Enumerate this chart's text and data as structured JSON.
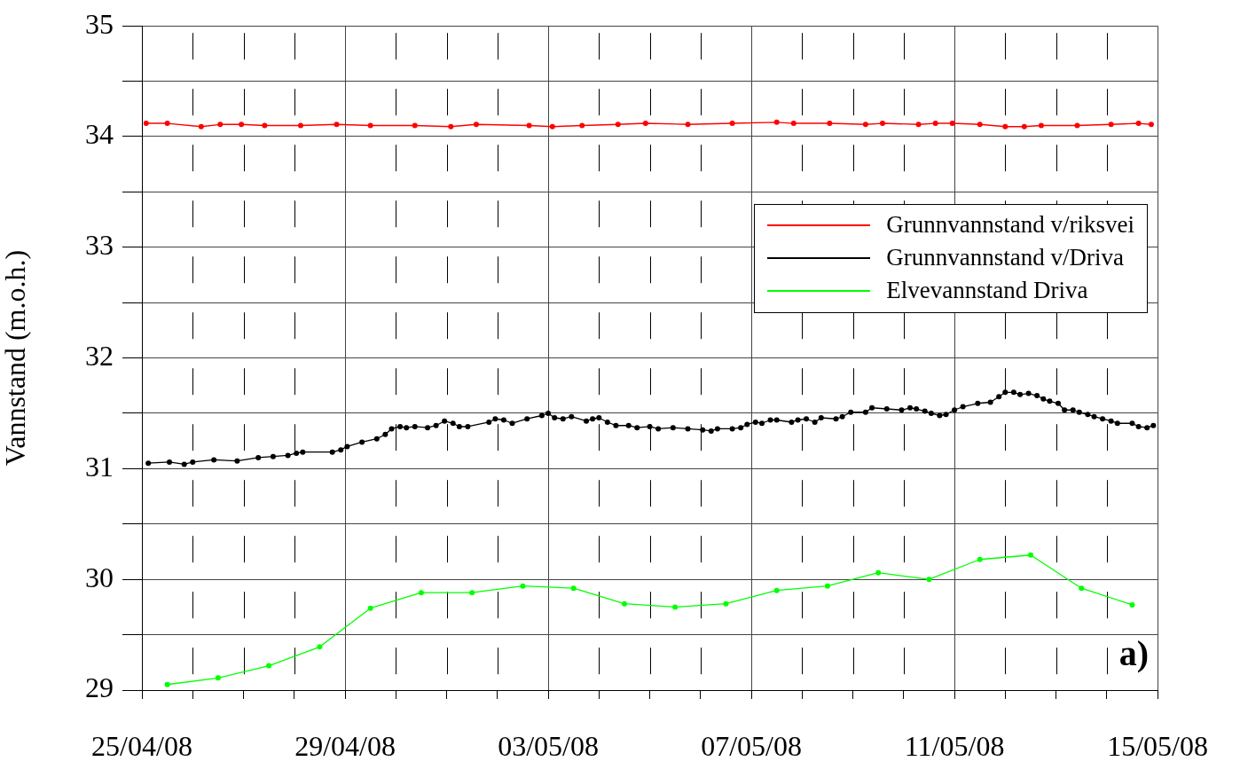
{
  "chart_data": {
    "type": "line",
    "ylabel": "Vannstand (m.o.h.)",
    "annotations": [
      "a)"
    ],
    "legend": "top right",
    "grid": true,
    "marker": "circle",
    "line_style": "solid",
    "xlim": [
      "--04-25",
      "--05-15"
    ],
    "xticks": [
      {
        "value": "--04-25",
        "label": "25/04/08"
      },
      {
        "value": "--04-26",
        "label": null
      },
      {
        "value": "--04-27",
        "label": null
      },
      {
        "value": "--04-28",
        "label": null
      },
      {
        "value": "--04-29",
        "label": "29/04/08"
      },
      {
        "value": "--04-30",
        "label": null
      },
      {
        "value": "--05-01",
        "label": null
      },
      {
        "value": "--05-02",
        "label": null
      },
      {
        "value": "--05-03",
        "label": "03/05/08"
      },
      {
        "value": "--05-04",
        "label": null
      },
      {
        "value": "--05-05",
        "label": null
      },
      {
        "value": "--05-06",
        "label": null
      },
      {
        "value": "--05-07",
        "label": "07/05/08"
      },
      {
        "value": "--05-08",
        "label": null
      },
      {
        "value": "--05-09",
        "label": null
      },
      {
        "value": "--05-10",
        "label": null
      },
      {
        "value": "--05-11",
        "label": "11/05/08"
      },
      {
        "value": "--05-12",
        "label": null
      },
      {
        "value": "--05-13",
        "label": null
      },
      {
        "value": "--05-14",
        "label": null
      },
      {
        "value": "--05-15",
        "label": "15/05/08"
      }
    ],
    "ylim": [
      29,
      35
    ],
    "yticks": [
      29,
      {
        "value": 29.5,
        "label": null
      },
      30,
      {
        "value": 30.5,
        "label": null
      },
      31,
      {
        "value": 31.5,
        "label": null
      },
      32,
      {
        "value": 32.5,
        "label": null
      },
      33,
      {
        "value": 33.5,
        "label": null
      },
      34,
      {
        "value": 34.5,
        "label": null
      },
      35
    ],
    "series": [
      {
        "name": "Grunnvannstand v/riksvei",
        "color": "#ff0000",
        "x": [
          "--04-25T02:00",
          "--04-25T12:00",
          "--04-26T04:00",
          "--04-26T13:00",
          "--04-26T23:00",
          "--04-27T10:00",
          "--04-28T03:00",
          "--04-28T20:00",
          "--04-29T12:00",
          "--04-30T09:00",
          "--05-01T02:00",
          "--05-01T14:00",
          "--05-02T15:00",
          "--05-03T02:00",
          "--05-03T16:00",
          "--05-04T09:00",
          "--05-04T22:00",
          "--05-05T18:00",
          "--05-06T15:00",
          "--05-07T12:00",
          "--05-07T20:00",
          "--05-08T13:00",
          "--05-09T06:00",
          "--05-09T14:00",
          "--05-10T07:00",
          "--05-10T15:00",
          "--05-10T23:00",
          "--05-11T12:00",
          "--05-12T00:00",
          "--05-12T09:00",
          "--05-12T17:00",
          "--05-13T10:00",
          "--05-14T02:00",
          "--05-14T15:00",
          "--05-14T21:00"
        ],
        "values": [
          34.12,
          34.12,
          34.09,
          34.11,
          34.11,
          34.1,
          34.1,
          34.11,
          34.1,
          34.1,
          34.09,
          34.11,
          34.1,
          34.09,
          34.1,
          34.11,
          34.12,
          34.11,
          34.12,
          34.13,
          34.12,
          34.12,
          34.11,
          34.12,
          34.11,
          34.12,
          34.12,
          34.11,
          34.09,
          34.09,
          34.1,
          34.1,
          34.11,
          34.12,
          34.11
        ]
      },
      {
        "name": "Grunnvannstand v/Driva",
        "color": "#000000",
        "x": [
          "--04-25T03:00",
          "--04-25T13:00",
          "--04-25T20:00",
          "--04-26T00:00",
          "--04-26T10:00",
          "--04-26T21:00",
          "--04-27T07:00",
          "--04-27T14:00",
          "--04-27T21:00",
          "--04-28T01:00",
          "--04-28T04:00",
          "--04-28T18:00",
          "--04-28T22:00",
          "--04-29T01:00",
          "--04-29T08:00",
          "--04-29T15:00",
          "--04-29T19:00",
          "--04-29T22:00",
          "--04-30T02:00",
          "--04-30T05:00",
          "--04-30T09:00",
          "--04-30T15:00",
          "--04-30T19:00",
          "--04-30T23:00",
          "--05-01T03:00",
          "--05-01T06:00",
          "--05-01T10:00",
          "--05-01T20:00",
          "--05-01T23:00",
          "--05-02T03:00",
          "--05-02T07:00",
          "--05-02T14:00",
          "--05-02T21:00",
          "--05-03T00:00",
          "--05-03T03:00",
          "--05-03T07:00",
          "--05-03T11:00",
          "--05-03T18:00",
          "--05-03T21:00",
          "--05-04T00:00",
          "--05-04T04:00",
          "--05-04T08:00",
          "--05-04T14:00",
          "--05-04T18:00",
          "--05-05T00:00",
          "--05-05T04:00",
          "--05-05T11:00",
          "--05-05T18:00",
          "--05-06T01:00",
          "--05-06T05:00",
          "--05-06T08:00",
          "--05-06T15:00",
          "--05-06T19:00",
          "--05-06T22:00",
          "--05-07T02:00",
          "--05-07T05:00",
          "--05-07T09:00",
          "--05-07T12:00",
          "--05-07T19:00",
          "--05-07T22:00",
          "--05-08T02:00",
          "--05-08T06:00",
          "--05-08T09:00",
          "--05-08T16:00",
          "--05-08T19:00",
          "--05-08T23:00",
          "--05-09T06:00",
          "--05-09T09:00",
          "--05-09T16:00",
          "--05-09T23:00",
          "--05-10T03:00",
          "--05-10T06:00",
          "--05-10T10:00",
          "--05-10T13:00",
          "--05-10T17:00",
          "--05-10T20:00",
          "--05-11T00:00",
          "--05-11T04:00",
          "--05-11T11:00",
          "--05-11T17:00",
          "--05-11T21:00",
          "--05-12T00:00",
          "--05-12T04:00",
          "--05-12T07:00",
          "--05-12T11:00",
          "--05-12T15:00",
          "--05-12T18:00",
          "--05-12T21:00",
          "--05-13T01:00",
          "--05-13T04:00",
          "--05-13T08:00",
          "--05-13T11:00",
          "--05-13T15:00",
          "--05-13T18:00",
          "--05-13T22:00",
          "--05-14T02:00",
          "--05-14T05:00",
          "--05-14T12:00",
          "--05-14T15:00",
          "--05-14T19:00",
          "--05-14T22:00"
        ],
        "values": [
          31.05,
          31.06,
          31.04,
          31.06,
          31.08,
          31.07,
          31.1,
          31.11,
          31.12,
          31.14,
          31.15,
          31.15,
          31.17,
          31.2,
          31.24,
          31.27,
          31.31,
          31.36,
          31.38,
          31.37,
          31.38,
          31.37,
          31.39,
          31.43,
          31.41,
          31.38,
          31.38,
          31.42,
          31.45,
          31.44,
          31.41,
          31.45,
          31.48,
          31.5,
          31.46,
          31.45,
          31.47,
          31.43,
          31.45,
          31.46,
          31.42,
          31.39,
          31.39,
          31.37,
          31.38,
          31.36,
          31.37,
          31.36,
          31.35,
          31.34,
          31.36,
          31.36,
          31.37,
          31.4,
          31.42,
          31.41,
          31.44,
          31.44,
          31.42,
          31.44,
          31.45,
          31.42,
          31.46,
          31.45,
          31.47,
          31.51,
          31.51,
          31.55,
          31.54,
          31.53,
          31.55,
          31.54,
          31.52,
          31.5,
          31.48,
          31.49,
          31.53,
          31.56,
          31.59,
          31.6,
          31.65,
          31.69,
          31.69,
          31.67,
          31.68,
          31.66,
          31.63,
          31.61,
          31.59,
          31.53,
          31.53,
          31.51,
          31.49,
          31.47,
          31.45,
          31.43,
          31.41,
          31.41,
          31.38,
          31.37,
          31.39
        ]
      },
      {
        "name": "Elvevannstand Driva",
        "color": "#00ff00",
        "x": [
          "--04-25T12:00",
          "--04-26T12:00",
          "--04-27T12:00",
          "--04-28T12:00",
          "--04-29T12:00",
          "--04-30T12:00",
          "--05-01T12:00",
          "--05-02T12:00",
          "--05-03T12:00",
          "--05-04T12:00",
          "--05-05T12:00",
          "--05-06T12:00",
          "--05-07T12:00",
          "--05-08T12:00",
          "--05-09T12:00",
          "--05-10T12:00",
          "--05-11T12:00",
          "--05-12T12:00",
          "--05-13T12:00",
          "--05-14T12:00"
        ],
        "values": [
          29.05,
          29.11,
          29.22,
          29.39,
          29.74,
          29.88,
          29.88,
          29.94,
          29.92,
          29.78,
          29.75,
          29.78,
          29.9,
          29.94,
          30.06,
          30.0,
          30.18,
          30.22,
          29.92,
          29.77
        ]
      }
    ]
  }
}
